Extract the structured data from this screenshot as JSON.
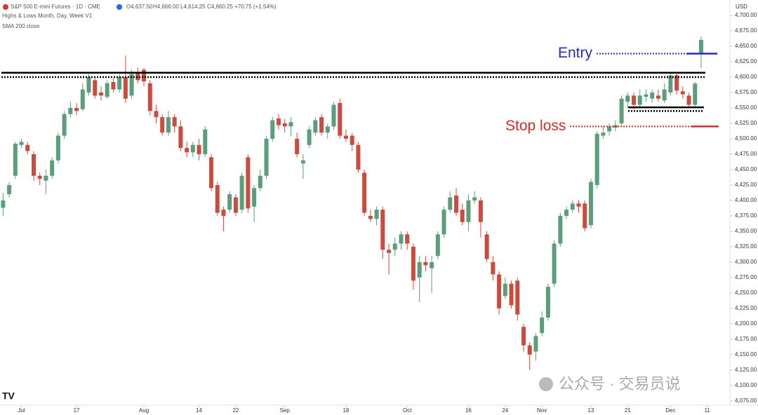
{
  "chart_data": {
    "type": "candlestick",
    "title": "S&P 500 E-mini Futures · 1D · CME",
    "ohlc_readout": {
      "open": "O4,637.50",
      "high": "H4,666.00",
      "low": "L4,614.25",
      "close": "C4,660.25",
      "change": "+70.75 (+1.54%)"
    },
    "indicators": [
      "Highs & Lows  Month, Day, Week V1",
      "SMA 200 close"
    ],
    "currency": "USD",
    "watermark": "公众号 · 交易员说",
    "up_color": "#5b9e7c",
    "down_color": "#cc4b3f",
    "x": [
      0,
      1,
      2,
      3,
      4,
      5,
      6,
      7,
      8,
      9,
      10,
      11,
      12,
      13,
      14,
      15,
      16,
      17,
      18,
      19,
      20,
      21,
      22,
      23,
      24,
      25,
      26,
      27,
      28,
      29,
      30,
      31,
      32,
      33,
      34,
      35,
      36,
      37,
      38,
      39,
      40,
      41,
      42,
      43,
      44,
      45,
      46,
      47,
      48,
      49,
      50,
      51,
      52,
      53,
      54,
      55,
      56,
      57,
      58,
      59,
      60,
      61,
      62,
      63,
      64,
      65,
      66,
      67,
      68,
      69,
      70,
      71,
      72,
      73,
      74,
      75,
      76,
      77,
      78,
      79,
      80,
      81,
      82,
      83,
      84,
      85,
      86,
      87,
      88,
      89,
      90,
      91,
      92,
      93,
      94,
      95,
      96,
      97,
      98,
      99,
      100,
      101,
      102,
      103,
      104,
      105,
      106,
      107,
      108,
      109,
      110,
      111,
      112,
      113,
      114
    ],
    "open": [
      4388,
      4410,
      4440,
      4490,
      4490,
      4475,
      4440,
      4432,
      4440,
      4465,
      4505,
      4540,
      4550,
      4548,
      4575,
      4595,
      4575,
      4568,
      4592,
      4580,
      4600,
      4570,
      4608,
      4612,
      4590,
      4545,
      4535,
      4510,
      4535,
      4520,
      4485,
      4478,
      4490,
      4475,
      4470,
      4425,
      4385,
      4385,
      4405,
      4385,
      4470,
      4390,
      4420,
      4440,
      4500,
      4533,
      4525,
      4520,
      4500,
      4460,
      4490,
      4510,
      4535,
      4510,
      4520,
      4558,
      4505,
      4505,
      4490,
      4445,
      4375,
      4370,
      4385,
      4320,
      4320,
      4330,
      4345,
      4325,
      4275,
      4300,
      4290,
      4310,
      4345,
      4385,
      4408,
      4385,
      4365,
      4400,
      4400,
      4345,
      4300,
      4280,
      4245,
      4265,
      4270,
      4195,
      4165,
      4155,
      4185,
      4210,
      4265,
      4330,
      4375,
      4385,
      4395,
      4395,
      4360,
      4425,
      4505,
      4512,
      4518,
      4525,
      4560,
      4570,
      4555,
      4568,
      4565,
      4570,
      4562,
      4575,
      4603,
      4577,
      4570,
      4555,
      4637.5
    ],
    "high": [
      4412,
      4430,
      4495,
      4500,
      4495,
      4480,
      4445,
      4450,
      4470,
      4510,
      4545,
      4560,
      4558,
      4590,
      4605,
      4600,
      4585,
      4595,
      4598,
      4605,
      4635,
      4612,
      4615,
      4615,
      4595,
      4555,
      4540,
      4545,
      4540,
      4530,
      4495,
      4495,
      4500,
      4520,
      4475,
      4430,
      4390,
      4415,
      4410,
      4445,
      4475,
      4425,
      4450,
      4505,
      4535,
      4540,
      4532,
      4535,
      4510,
      4475,
      4520,
      4535,
      4540,
      4525,
      4560,
      4565,
      4515,
      4510,
      4495,
      4450,
      4385,
      4390,
      4390,
      4330,
      4340,
      4350,
      4350,
      4330,
      4310,
      4310,
      4310,
      4350,
      4390,
      4415,
      4420,
      4395,
      4410,
      4415,
      4405,
      4350,
      4310,
      4285,
      4275,
      4270,
      4275,
      4200,
      4170,
      4185,
      4220,
      4265,
      4335,
      4380,
      4390,
      4400,
      4400,
      4400,
      4435,
      4512,
      4520,
      4525,
      4530,
      4570,
      4575,
      4575,
      4580,
      4580,
      4580,
      4580,
      4590,
      4608,
      4608,
      4585,
      4575,
      4592,
      4666
    ],
    "low": [
      4375,
      4405,
      4435,
      4485,
      4475,
      4432,
      4425,
      4410,
      4435,
      4460,
      4500,
      4535,
      4538,
      4545,
      4570,
      4565,
      4562,
      4565,
      4575,
      4575,
      4558,
      4565,
      4590,
      4585,
      4538,
      4525,
      4505,
      4505,
      4510,
      4480,
      4470,
      4470,
      4465,
      4470,
      4415,
      4375,
      4350,
      4380,
      4375,
      4380,
      4380,
      4365,
      4415,
      4435,
      4495,
      4515,
      4510,
      4505,
      4470,
      4435,
      4485,
      4505,
      4505,
      4500,
      4515,
      4500,
      4495,
      4480,
      4445,
      4375,
      4365,
      4360,
      4305,
      4280,
      4310,
      4320,
      4320,
      4255,
      4235,
      4285,
      4250,
      4305,
      4340,
      4380,
      4375,
      4360,
      4350,
      4395,
      4340,
      4300,
      4270,
      4215,
      4240,
      4225,
      4205,
      4155,
      4125,
      4140,
      4180,
      4205,
      4260,
      4325,
      4370,
      4380,
      4380,
      4350,
      4355,
      4420,
      4500,
      4505,
      4512,
      4520,
      4550,
      4548,
      4550,
      4560,
      4558,
      4560,
      4558,
      4570,
      4572,
      4565,
      4550,
      4552,
      4614.25
    ],
    "close": [
      4400,
      4425,
      4492,
      4495,
      4480,
      4440,
      4435,
      4440,
      4465,
      4505,
      4540,
      4550,
      4545,
      4580,
      4600,
      4570,
      4570,
      4590,
      4580,
      4600,
      4565,
      4605,
      4595,
      4593,
      4545,
      4535,
      4510,
      4535,
      4520,
      4485,
      4478,
      4490,
      4475,
      4515,
      4420,
      4380,
      4375,
      4410,
      4380,
      4440,
      4387,
      4420,
      4440,
      4500,
      4530,
      4522,
      4520,
      4527,
      4475,
      4465,
      4515,
      4530,
      4510,
      4520,
      4555,
      4505,
      4500,
      4490,
      4450,
      4380,
      4370,
      4385,
      4320,
      4315,
      4330,
      4345,
      4330,
      4270,
      4300,
      4295,
      4300,
      4345,
      4385,
      4405,
      4380,
      4365,
      4400,
      4405,
      4365,
      4305,
      4280,
      4225,
      4265,
      4230,
      4215,
      4165,
      4150,
      4180,
      4210,
      4260,
      4330,
      4375,
      4385,
      4395,
      4390,
      4355,
      4430,
      4508,
      4510,
      4520,
      4522,
      4565,
      4570,
      4555,
      4570,
      4572,
      4575,
      4565,
      4580,
      4603,
      4578,
      4572,
      4555,
      4589.5,
      4660.25
    ],
    "xlim": [
      -0.5,
      118.7
    ],
    "xticks": [
      {
        "value": 3,
        "label": "Jul"
      },
      {
        "value": 12,
        "label": "17"
      },
      {
        "value": 23,
        "label": "Aug"
      },
      {
        "value": 32,
        "label": "14"
      },
      {
        "value": 38,
        "label": "22"
      },
      {
        "value": 46,
        "label": "Sep"
      },
      {
        "value": 56,
        "label": "18"
      },
      {
        "value": 66,
        "label": "Oct"
      },
      {
        "value": 76,
        "label": "16"
      },
      {
        "value": 82,
        "label": "24"
      },
      {
        "value": 88,
        "label": "Nov"
      },
      {
        "value": 96,
        "label": "13"
      },
      {
        "value": 102,
        "label": "21"
      },
      {
        "value": 109,
        "label": "Dec"
      },
      {
        "value": 115,
        "label": "11"
      }
    ],
    "ylim": [
      4068,
      4725
    ],
    "yticks": [
      {
        "value": 4700,
        "label": "4,700.00"
      },
      {
        "value": 4675,
        "label": "4,675.00"
      },
      {
        "value": 4650,
        "label": "4,650.00"
      },
      {
        "value": 4625,
        "label": "4,625.00"
      },
      {
        "value": 4600,
        "label": "4,600.00"
      },
      {
        "value": 4575,
        "label": "4,575.00"
      },
      {
        "value": 4550,
        "label": "4,550.00"
      },
      {
        "value": 4525,
        "label": "4,525.00"
      },
      {
        "value": 4500,
        "label": "4,500.00"
      },
      {
        "value": 4475,
        "label": "4,475.00"
      },
      {
        "value": 4450,
        "label": "4,450.00"
      },
      {
        "value": 4425,
        "label": "4,425.00"
      },
      {
        "value": 4400,
        "label": "4,400.00"
      },
      {
        "value": 4375,
        "label": "4,375.00"
      },
      {
        "value": 4350,
        "label": "4,350.00"
      },
      {
        "value": 4325,
        "label": "4,325.00"
      },
      {
        "value": 4300,
        "label": "4,300.00"
      },
      {
        "value": 4275,
        "label": "4,275.00"
      },
      {
        "value": 4250,
        "label": "4,250.00"
      },
      {
        "value": 4225,
        "label": "4,225.00"
      },
      {
        "value": 4200,
        "label": "4,200.00"
      },
      {
        "value": 4175,
        "label": "4,175.00"
      },
      {
        "value": 4150,
        "label": "4,150.00"
      },
      {
        "value": 4125,
        "label": "4,125.00"
      },
      {
        "value": 4100,
        "label": "4,100.00"
      },
      {
        "value": 4075,
        "label": "4,075.00"
      }
    ],
    "levels": {
      "resistance": [
        4607,
        4600
      ],
      "support": [
        4551,
        4545
      ],
      "entry": {
        "label": "Entry",
        "value": 4638,
        "color": "#2a2ab8"
      },
      "stop_loss": {
        "label": "Stop loss",
        "value": 4520,
        "color": "#d42a2a"
      }
    }
  }
}
